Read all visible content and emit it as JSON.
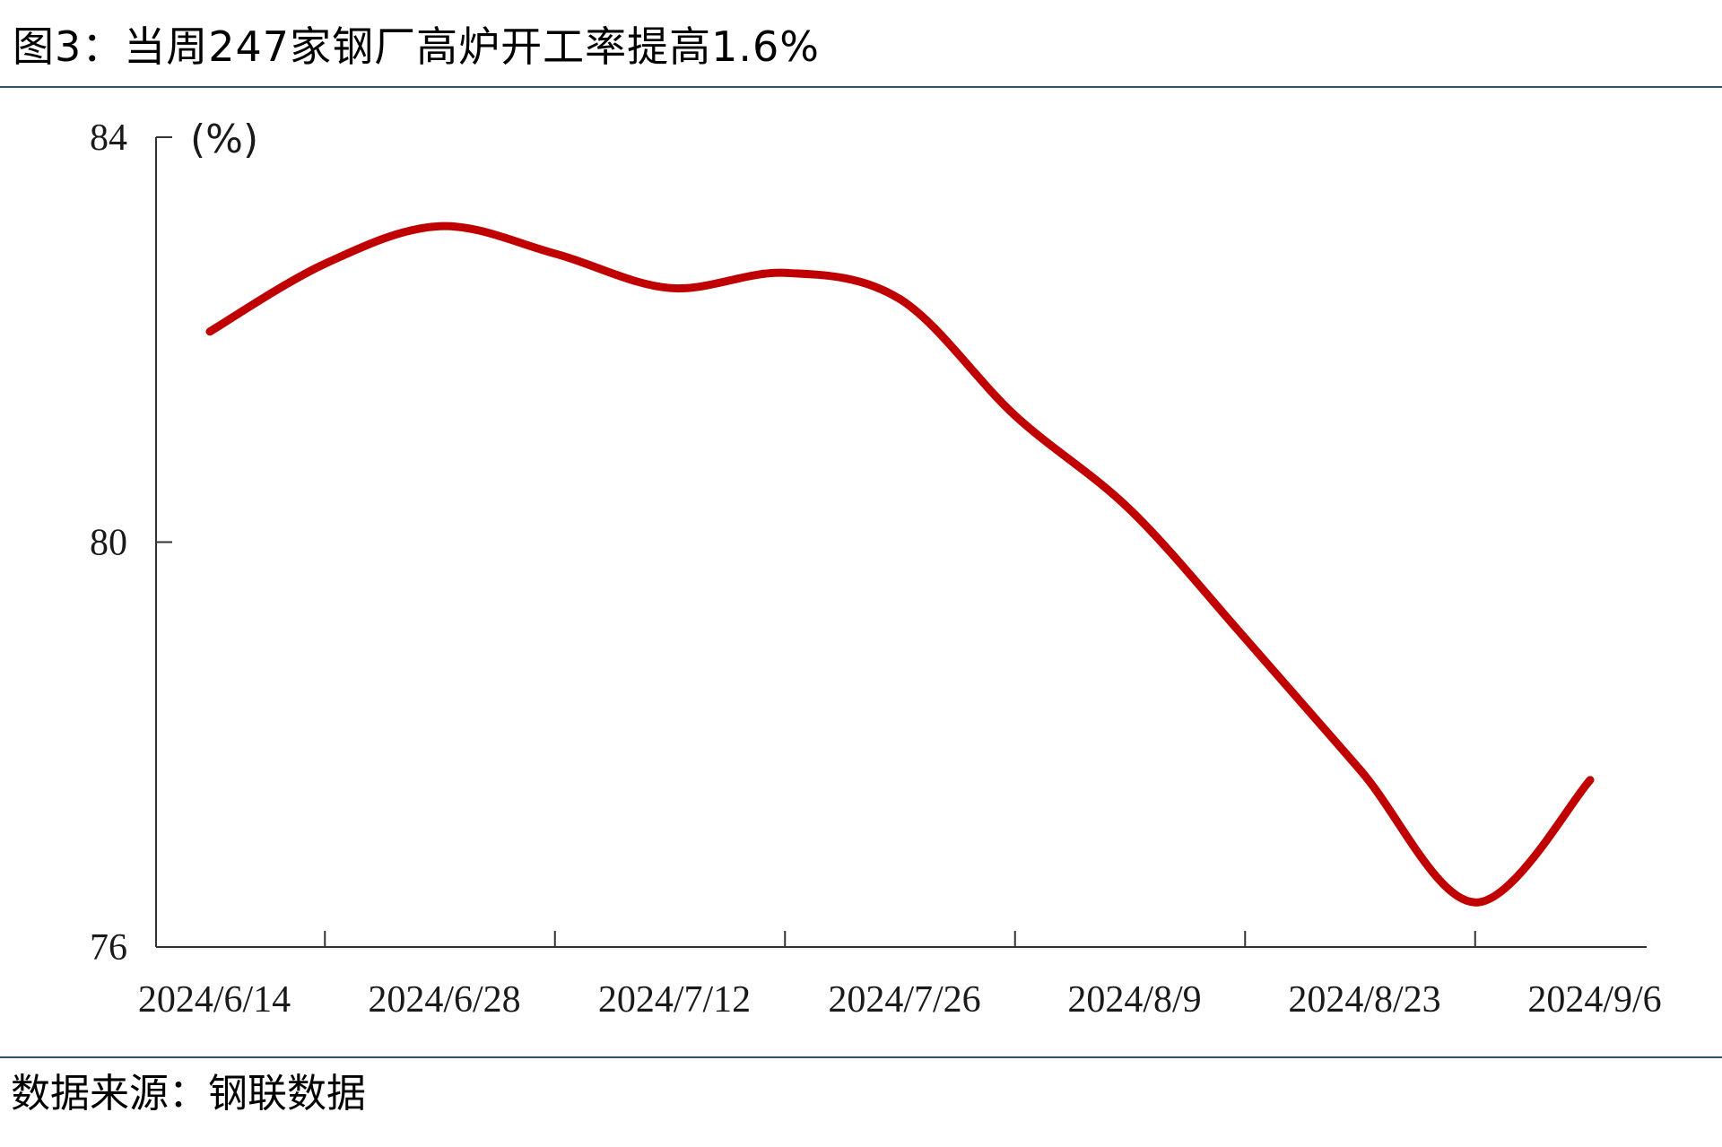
{
  "chart_data": {
    "type": "line",
    "title": "图3：当周247家钢厂高炉开工率提高1.6%",
    "ylabel": "(%)",
    "xlabel": "",
    "ylim": [
      76,
      84
    ],
    "yticks": [
      84,
      80,
      76
    ],
    "xticks": [
      "2024/6/14",
      "2024/6/28",
      "2024/7/12",
      "2024/7/26",
      "2024/8/9",
      "2024/8/23",
      "2024/9/6"
    ],
    "x": [
      "2024/6/14",
      "2024/6/21",
      "2024/6/28",
      "2024/7/5",
      "2024/7/12",
      "2024/7/19",
      "2024/7/26",
      "2024/8/2",
      "2024/8/9",
      "2024/8/16",
      "2024/8/23",
      "2024/8/30",
      "2024/9/6"
    ],
    "series": [
      {
        "values": [
          82.08,
          82.75,
          83.12,
          82.85,
          82.51,
          82.66,
          82.4,
          81.25,
          80.32,
          79.05,
          77.75,
          76.44,
          77.65
        ],
        "color": "#c00000"
      }
    ],
    "grid": false,
    "legend": "none"
  },
  "footer": {
    "source": "数据来源：钢联数据"
  }
}
